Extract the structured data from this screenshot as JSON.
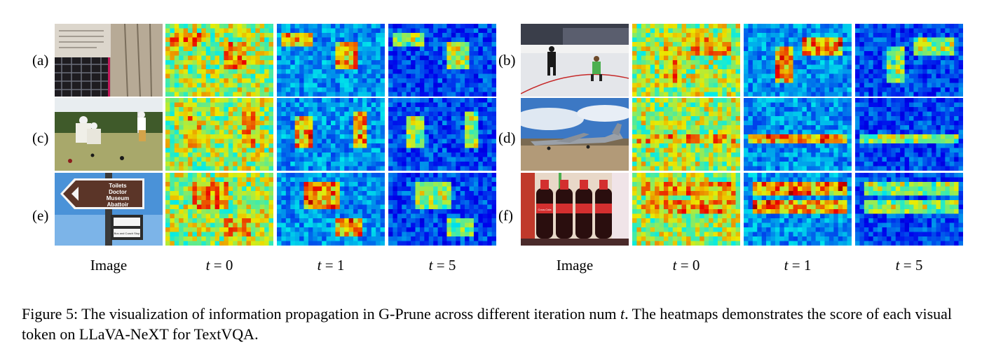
{
  "figure": {
    "left_rows": [
      "(a)",
      "(c)",
      "(e)"
    ],
    "right_rows": [
      "(b)",
      "(d)",
      "(f)"
    ],
    "columns": [
      {
        "prefix": "Image",
        "var": "",
        "suffix": ""
      },
      {
        "prefix": "",
        "var": "t",
        "suffix": " = 0"
      },
      {
        "prefix": "",
        "var": "t",
        "suffix": " = 1"
      },
      {
        "prefix": "",
        "var": "t",
        "suffix": " = 5"
      }
    ],
    "sign_text": [
      "Toilets",
      "Doctor",
      "Museum",
      "Abattoir"
    ],
    "bus_sign_text": "Bus and Coach Stop",
    "bottle_label": "Coca-Cola"
  },
  "caption": {
    "label": "Figure 5:",
    "text_before_var": " The visualization of information propagation in G-Prune across different iteration num ",
    "var": "t",
    "text_after_var": ". The heatmaps demonstrates the score of each visual token on LLaVA-NeXT for TextVQA."
  }
}
